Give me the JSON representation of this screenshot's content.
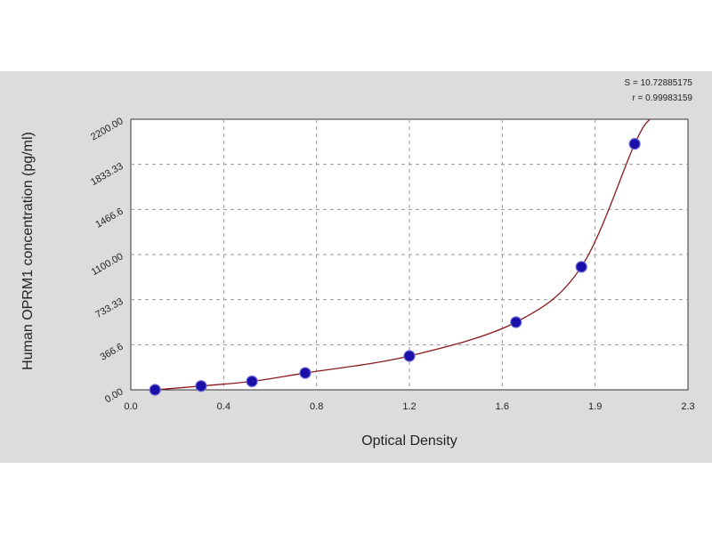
{
  "chart_data": {
    "type": "scatter",
    "xlabel": "Optical Density",
    "ylabel": "Human OPRM1 concentration (pg/ml)",
    "xlim": [
      0.0,
      2.3
    ],
    "ylim": [
      0.0,
      2200.0
    ],
    "x_ticks": [
      "0.0",
      "0.4",
      "0.8",
      "1.2",
      "1.6",
      "1.9",
      "2.3"
    ],
    "y_ticks": [
      "0.00",
      "366.6",
      "733.33",
      "1100.00",
      "1466.6",
      "1833.33",
      "2200.00"
    ],
    "grid": true,
    "stats": [
      "S = 10.72885175",
      "r = 0.99983159"
    ],
    "points": [
      {
        "x": 0.1,
        "y": 0
      },
      {
        "x": 0.29,
        "y": 31
      },
      {
        "x": 0.5,
        "y": 69
      },
      {
        "x": 0.72,
        "y": 137
      },
      {
        "x": 1.15,
        "y": 275
      },
      {
        "x": 1.59,
        "y": 550
      },
      {
        "x": 1.86,
        "y": 1000
      },
      {
        "x": 2.08,
        "y": 2000
      }
    ],
    "curve_color": "#8b1a1a",
    "point_color": "#1a0fa8",
    "background_color": "#dcdcdc"
  }
}
